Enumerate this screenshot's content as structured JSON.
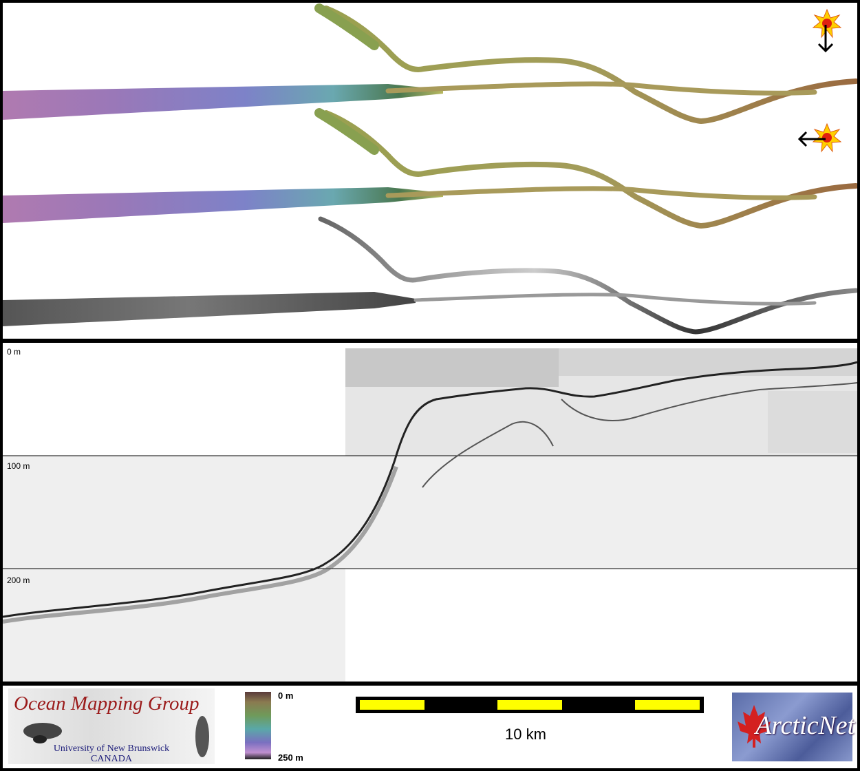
{
  "profile": {
    "depth_labels": [
      "0 m",
      "100 m",
      "200 m"
    ]
  },
  "legend": {
    "colorbar_top": "0 m",
    "colorbar_bottom": "250 m",
    "scale_label": "10 km"
  },
  "logos": {
    "omg_title": "Ocean Mapping Group",
    "omg_line1": "University of New Brunswick",
    "omg_line2": "CANADA",
    "arctic_text": "ArcticNet"
  },
  "colors": {
    "scale_yellow": "#ffff00",
    "omg_red": "#9b1b1b",
    "sun_yellow": "#ffd000",
    "sun_red": "#e02010"
  },
  "icons": [
    "sun-illumination-icon",
    "arrow-down-icon",
    "arrow-left-icon",
    "maple-leaf-icon"
  ]
}
